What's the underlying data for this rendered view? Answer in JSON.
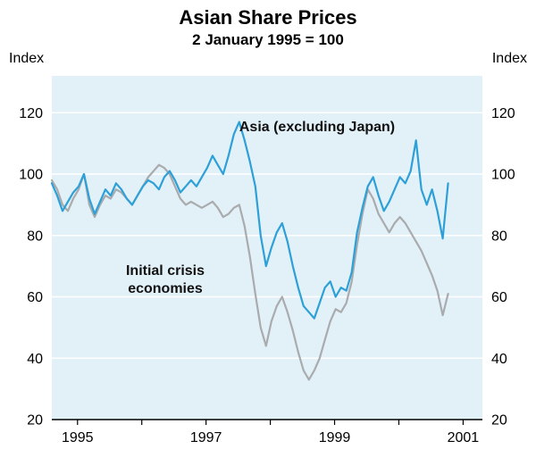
{
  "title": "Asian Share Prices",
  "subtitle": "2 January 1995 = 100",
  "axis": {
    "left_label": "Index",
    "right_label": "Index"
  },
  "annotations": {
    "asia": "Asia (excluding Japan)",
    "crisis": "Initial crisis\neconomies"
  },
  "colors": {
    "plot_background": "#e2f0f8",
    "grid": "#ffffff",
    "axis_line": "#000000",
    "asia_line": "#2da0d8",
    "crisis_line": "#a9abad"
  },
  "chart_data": {
    "type": "line",
    "title": "Asian Share Prices",
    "subtitle": "2 January 1995 = 100",
    "xlabel": "",
    "ylabel": "Index",
    "xlim": [
      1994.6,
      2001.3
    ],
    "ylim": [
      20,
      132
    ],
    "y_ticks": [
      20,
      40,
      60,
      80,
      100,
      120
    ],
    "x_ticks": [
      1995,
      1996,
      1997,
      1998,
      1999,
      2000,
      2001
    ],
    "x_tick_labels": [
      "1995",
      "1997",
      "1999",
      "2001"
    ],
    "x_tick_label_positions": [
      1995,
      1997,
      1999,
      2001
    ],
    "grid": "horizontal-white",
    "legend_position": "inline-annotations",
    "x_start": 1994.6,
    "x_step": 0.0833333,
    "series": [
      {
        "name": "Initial crisis economies",
        "color": "#a9abad",
        "values": [
          98,
          95,
          90,
          88,
          92,
          95,
          100,
          90,
          86,
          90,
          93,
          92,
          95,
          94,
          92,
          90,
          93,
          96,
          99,
          101,
          103,
          102,
          100,
          96,
          92,
          90,
          91,
          90,
          89,
          90,
          91,
          89,
          86,
          87,
          89,
          90,
          83,
          73,
          61,
          50,
          44,
          52,
          57,
          60,
          55,
          49,
          42,
          36,
          33,
          36,
          40,
          46,
          52,
          56,
          55,
          58,
          65,
          77,
          87,
          95,
          92,
          87,
          84,
          81,
          84,
          86,
          84,
          81,
          78,
          75,
          71,
          67,
          62,
          54,
          61
        ]
      },
      {
        "name": "Asia (excluding Japan)",
        "color": "#2da0d8",
        "values": [
          97,
          93,
          88,
          91,
          94,
          96,
          100,
          92,
          87,
          91,
          95,
          93,
          97,
          95,
          92,
          90,
          93,
          96,
          98,
          97,
          95,
          99,
          101,
          98,
          94,
          96,
          98,
          96,
          99,
          102,
          106,
          103,
          100,
          106,
          113,
          117,
          111,
          104,
          96,
          80,
          70,
          76,
          81,
          84,
          78,
          70,
          63,
          57,
          55,
          53,
          58,
          63,
          65,
          60,
          63,
          62,
          68,
          81,
          89,
          96,
          99,
          93,
          88,
          91,
          95,
          99,
          97,
          101,
          111,
          95,
          90,
          95,
          88,
          79,
          97
        ]
      }
    ]
  }
}
